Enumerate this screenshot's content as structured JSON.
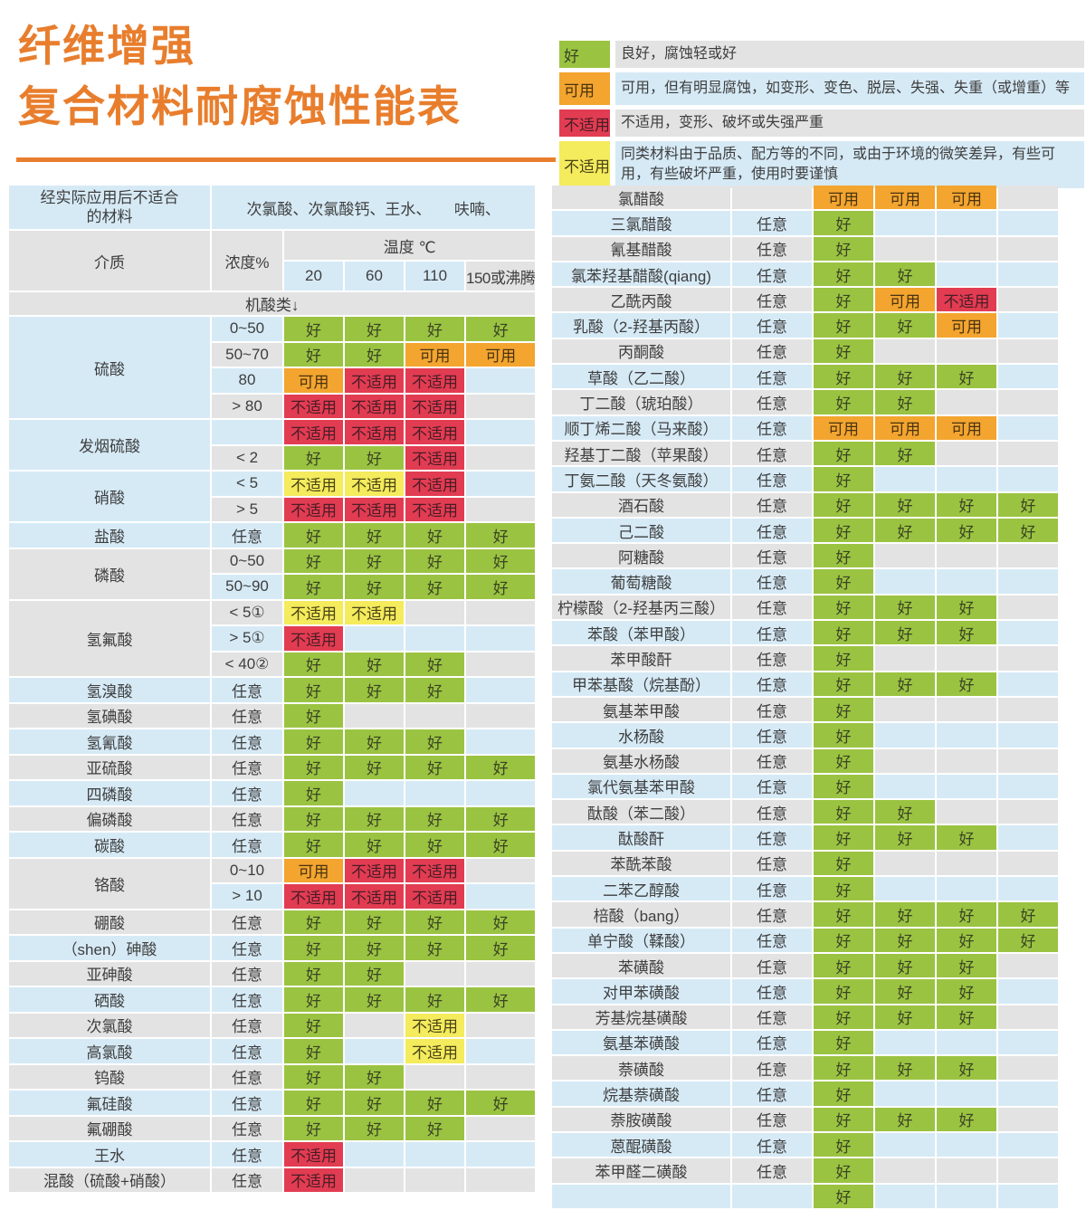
{
  "title": {
    "text": "纤维增强\n复合材料耐腐蚀性能表",
    "color": "#e87e2d"
  },
  "colors": {
    "row_blue": "#d6eaf6",
    "row_gray": "#e3e3e4",
    "title_orange": "#e87e2d",
    "cell_text": "#3e3e3e"
  },
  "statuses": {
    "good": {
      "label": "好",
      "bg": "#9bc342",
      "fg": "#3a4423"
    },
    "usable": {
      "label": "可用",
      "bg": "#f3a52f",
      "fg": "#4a3310"
    },
    "bad": {
      "label": "不适用",
      "bg": "#e23c52",
      "fg": "#491c26"
    },
    "caution": {
      "label": "不适用",
      "bg": "#f4eb5d",
      "fg": "#4a4416"
    }
  },
  "legend": {
    "items": [
      {
        "status": "good",
        "swatch": "好",
        "row_bg": "gray",
        "desc": "良好，腐蚀轻或好"
      },
      {
        "status": "usable",
        "swatch": "可用",
        "row_bg": "blue",
        "desc": "可用，但有明显腐蚀，如变形、变色、脱层、失强、失重（或增重）等"
      },
      {
        "status": "bad",
        "swatch": "不适用",
        "row_bg": "gray",
        "desc": "不适用，变形、破坏或失强严重"
      },
      {
        "status": "caution",
        "swatch": "不适用",
        "row_bg": "blue",
        "desc": "同类材料由于品质、配方等的不同，或由于环境的微笑差异，有些可用，有些破坏严重，使用时要谨慎"
      }
    ]
  },
  "left_table": {
    "header": {
      "unsuitable_label": "经实际应用后不适合\n的材料",
      "unsuitable_value": "次氯酸、次氯酸钙、王水、　　呋喃、",
      "medium": "介质",
      "concentration": "浓度%",
      "temperature": "温度 ℃",
      "temps": [
        "20",
        "60",
        "110",
        "150或沸腾"
      ],
      "section": "机酸类↓"
    },
    "row_alt_start": "blue",
    "groups": [
      {
        "name": "硫酸",
        "rows": [
          {
            "conc": "0~50",
            "cells": [
              "good",
              "good",
              "good",
              "good"
            ]
          },
          {
            "conc": "50~70",
            "cells": [
              "good",
              "good",
              "usable",
              "usable"
            ]
          },
          {
            "conc": "80",
            "cells": [
              "usable",
              "bad",
              "bad",
              null
            ]
          },
          {
            "conc": "> 80",
            "cells": [
              "bad",
              "bad",
              "bad",
              null
            ]
          }
        ]
      },
      {
        "name": "发烟硫酸",
        "rows": [
          {
            "conc": "",
            "cells": [
              "bad",
              "bad",
              "bad",
              null
            ]
          },
          {
            "conc": "< 2",
            "cells": [
              "good",
              "good",
              "bad",
              null
            ]
          }
        ]
      },
      {
        "name": "硝酸",
        "rows": [
          {
            "conc": "< 5",
            "cells": [
              "caution",
              "caution",
              "bad",
              null
            ]
          },
          {
            "conc": "> 5",
            "cells": [
              "bad",
              "bad",
              "bad",
              null
            ]
          }
        ]
      },
      {
        "name": "盐酸",
        "rows": [
          {
            "conc": "任意",
            "cells": [
              "good",
              "good",
              "good",
              "good"
            ]
          }
        ]
      },
      {
        "name": "磷酸",
        "rows": [
          {
            "conc": "0~50",
            "cells": [
              "good",
              "good",
              "good",
              "good"
            ]
          },
          {
            "conc": "50~90",
            "cells": [
              "good",
              "good",
              "good",
              "good"
            ]
          }
        ]
      },
      {
        "name": "氢氟酸",
        "rows": [
          {
            "conc": "< 5①",
            "cells": [
              "caution",
              "caution",
              null,
              null
            ]
          },
          {
            "conc": "> 5①",
            "cells": [
              "bad",
              null,
              null,
              null
            ]
          },
          {
            "conc": "< 40②",
            "cells": [
              "good",
              "good",
              "good",
              null
            ]
          }
        ]
      },
      {
        "name": "氢溴酸",
        "rows": [
          {
            "conc": "任意",
            "cells": [
              "good",
              "good",
              "good",
              null
            ]
          }
        ]
      },
      {
        "name": "氢碘酸",
        "rows": [
          {
            "conc": "任意",
            "cells": [
              "good",
              null,
              null,
              null
            ]
          }
        ]
      },
      {
        "name": "氢氰酸",
        "rows": [
          {
            "conc": "任意",
            "cells": [
              "good",
              "good",
              "good",
              null
            ]
          }
        ]
      },
      {
        "name": "亚硫酸",
        "rows": [
          {
            "conc": "任意",
            "cells": [
              "good",
              "good",
              "good",
              "good"
            ]
          }
        ]
      },
      {
        "name": "四磷酸",
        "rows": [
          {
            "conc": "任意",
            "cells": [
              "good",
              null,
              null,
              null
            ]
          }
        ]
      },
      {
        "name": "偏磷酸",
        "rows": [
          {
            "conc": "任意",
            "cells": [
              "good",
              "good",
              "good",
              "good"
            ]
          }
        ]
      },
      {
        "name": "碳酸",
        "rows": [
          {
            "conc": "任意",
            "cells": [
              "good",
              "good",
              "good",
              "good"
            ]
          }
        ]
      },
      {
        "name": "铬酸",
        "rows": [
          {
            "conc": "0~10",
            "cells": [
              "usable",
              "bad",
              "bad",
              null
            ]
          },
          {
            "conc": "> 10",
            "cells": [
              "bad",
              "bad",
              "bad",
              null
            ]
          }
        ]
      },
      {
        "name": "硼酸",
        "rows": [
          {
            "conc": "任意",
            "cells": [
              "good",
              "good",
              "good",
              "good"
            ]
          }
        ]
      },
      {
        "name": "（shen）砷酸",
        "rows": [
          {
            "conc": "任意",
            "cells": [
              "good",
              "good",
              "good",
              "good"
            ]
          }
        ]
      },
      {
        "name": "亚砷酸",
        "rows": [
          {
            "conc": "任意",
            "cells": [
              "good",
              "good",
              null,
              null
            ]
          }
        ]
      },
      {
        "name": "硒酸",
        "rows": [
          {
            "conc": "任意",
            "cells": [
              "good",
              "good",
              "good",
              "good"
            ]
          }
        ]
      },
      {
        "name": "次氯酸",
        "rows": [
          {
            "conc": "任意",
            "cells": [
              "good",
              null,
              "caution",
              null
            ]
          }
        ]
      },
      {
        "name": "高氯酸",
        "rows": [
          {
            "conc": "任意",
            "cells": [
              "good",
              null,
              "caution",
              null
            ]
          }
        ]
      },
      {
        "name": "钨酸",
        "rows": [
          {
            "conc": "任意",
            "cells": [
              "good",
              "good",
              null,
              null
            ]
          }
        ]
      },
      {
        "name": "氟硅酸",
        "rows": [
          {
            "conc": "任意",
            "cells": [
              "good",
              "good",
              "good",
              "good"
            ]
          }
        ]
      },
      {
        "name": "氟硼酸",
        "rows": [
          {
            "conc": "任意",
            "cells": [
              "good",
              "good",
              "good",
              null
            ]
          }
        ]
      },
      {
        "name": "王水",
        "rows": [
          {
            "conc": "任意",
            "cells": [
              "bad",
              null,
              null,
              null
            ]
          }
        ]
      },
      {
        "name": "混酸（硫酸+硝酸）",
        "rows": [
          {
            "conc": "任意",
            "cells": [
              "bad",
              null,
              null,
              null
            ]
          }
        ]
      }
    ]
  },
  "right_table": {
    "row_alt_start": "gray",
    "rows": [
      {
        "name": "氯醋酸",
        "conc": "",
        "cells": [
          "usable",
          "usable",
          "usable",
          null
        ]
      },
      {
        "name": "三氯醋酸",
        "conc": "任意",
        "cells": [
          "good",
          null,
          null,
          null
        ]
      },
      {
        "name": "氰基醋酸",
        "conc": "任意",
        "cells": [
          "good",
          null,
          null,
          null
        ]
      },
      {
        "name": "氯苯羟基醋酸(qiang)",
        "conc": "任意",
        "cells": [
          "good",
          "good",
          null,
          null
        ]
      },
      {
        "name": "乙酰丙酸",
        "conc": "任意",
        "cells": [
          "good",
          "usable",
          "bad",
          null
        ]
      },
      {
        "name": "乳酸（2-羟基丙酸）",
        "conc": "任意",
        "cells": [
          "good",
          "good",
          "usable",
          null
        ]
      },
      {
        "name": "丙酮酸",
        "conc": "任意",
        "cells": [
          "good",
          null,
          null,
          null
        ]
      },
      {
        "name": "草酸（乙二酸）",
        "conc": "任意",
        "cells": [
          "good",
          "good",
          "good",
          null
        ]
      },
      {
        "name": "丁二酸（琥珀酸）",
        "conc": "任意",
        "cells": [
          "good",
          "good",
          null,
          null
        ]
      },
      {
        "name": "顺丁烯二酸（马来酸）",
        "conc": "任意",
        "cells": [
          "usable",
          "usable",
          "usable",
          null
        ]
      },
      {
        "name": "羟基丁二酸（苹果酸）",
        "conc": "任意",
        "cells": [
          "good",
          "good",
          null,
          null
        ]
      },
      {
        "name": "丁氨二酸（天冬氨酸）",
        "conc": "任意",
        "cells": [
          "good",
          null,
          null,
          null
        ]
      },
      {
        "name": "酒石酸",
        "conc": "任意",
        "cells": [
          "good",
          "good",
          "good",
          "good"
        ]
      },
      {
        "name": "己二酸",
        "conc": "任意",
        "cells": [
          "good",
          "good",
          "good",
          "good"
        ]
      },
      {
        "name": "阿糖酸",
        "conc": "任意",
        "cells": [
          "good",
          null,
          null,
          null
        ]
      },
      {
        "name": "葡萄糖酸",
        "conc": "任意",
        "cells": [
          "good",
          null,
          null,
          null
        ]
      },
      {
        "name": "柠檬酸（2-羟基丙三酸）",
        "conc": "任意",
        "cells": [
          "good",
          "good",
          "good",
          null
        ]
      },
      {
        "name": "苯酸（苯甲酸）",
        "conc": "任意",
        "cells": [
          "good",
          "good",
          "good",
          null
        ]
      },
      {
        "name": "苯甲酸酐",
        "conc": "任意",
        "cells": [
          "good",
          null,
          null,
          null
        ]
      },
      {
        "name": "甲苯基酸（烷基酚）",
        "conc": "任意",
        "cells": [
          "good",
          "good",
          "good",
          null
        ]
      },
      {
        "name": "氨基苯甲酸",
        "conc": "任意",
        "cells": [
          "good",
          null,
          null,
          null
        ]
      },
      {
        "name": "水杨酸",
        "conc": "任意",
        "cells": [
          "good",
          null,
          null,
          null
        ]
      },
      {
        "name": "氨基水杨酸",
        "conc": "任意",
        "cells": [
          "good",
          null,
          null,
          null
        ]
      },
      {
        "name": "氯代氨基苯甲酸",
        "conc": "任意",
        "cells": [
          "good",
          null,
          null,
          null
        ]
      },
      {
        "name": "酞酸（苯二酸）",
        "conc": "任意",
        "cells": [
          "good",
          "good",
          null,
          null
        ]
      },
      {
        "name": "酞酸酐",
        "conc": "任意",
        "cells": [
          "good",
          "good",
          "good",
          null
        ]
      },
      {
        "name": "苯酰苯酸",
        "conc": "任意",
        "cells": [
          "good",
          null,
          null,
          null
        ]
      },
      {
        "name": "二苯乙醇酸",
        "conc": "任意",
        "cells": [
          "good",
          null,
          null,
          null
        ]
      },
      {
        "name": "棓酸（bang）",
        "conc": "任意",
        "cells": [
          "good",
          "good",
          "good",
          "good"
        ]
      },
      {
        "name": "单宁酸（鞣酸）",
        "conc": "任意",
        "cells": [
          "good",
          "good",
          "good",
          "good"
        ]
      },
      {
        "name": "苯磺酸",
        "conc": "任意",
        "cells": [
          "good",
          "good",
          "good",
          null
        ]
      },
      {
        "name": "对甲苯磺酸",
        "conc": "任意",
        "cells": [
          "good",
          "good",
          "good",
          null
        ]
      },
      {
        "name": "芳基烷基磺酸",
        "conc": "任意",
        "cells": [
          "good",
          "good",
          "good",
          null
        ]
      },
      {
        "name": "氨基苯磺酸",
        "conc": "任意",
        "cells": [
          "good",
          null,
          null,
          null
        ]
      },
      {
        "name": "萘磺酸",
        "conc": "任意",
        "cells": [
          "good",
          "good",
          "good",
          null
        ]
      },
      {
        "name": "烷基萘磺酸",
        "conc": "任意",
        "cells": [
          "good",
          null,
          null,
          null
        ]
      },
      {
        "name": "萘胺磺酸",
        "conc": "任意",
        "cells": [
          "good",
          "good",
          "good",
          null
        ]
      },
      {
        "name": "蒽醌磺酸",
        "conc": "任意",
        "cells": [
          "good",
          null,
          null,
          null
        ]
      },
      {
        "name": "苯甲醛二磺酸",
        "conc": "任意",
        "cells": [
          "good",
          null,
          null,
          null
        ]
      },
      {
        "name": "",
        "conc": "",
        "cells": [
          "good",
          null,
          null,
          null
        ]
      }
    ]
  }
}
